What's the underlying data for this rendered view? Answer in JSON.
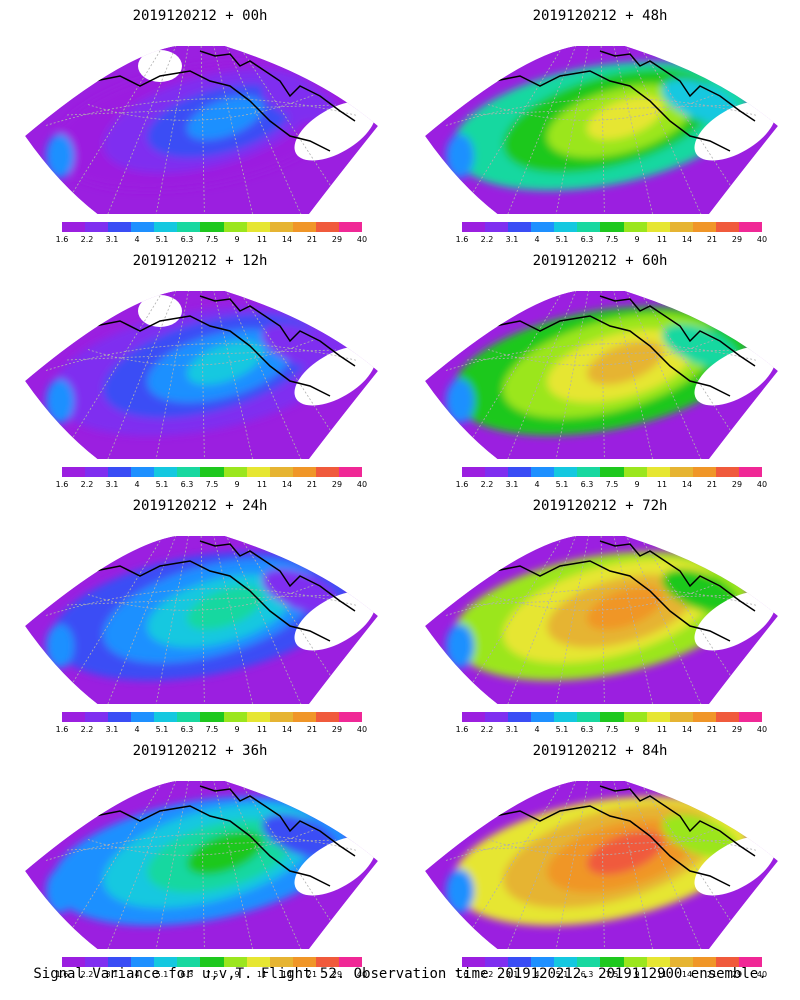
{
  "panels": [
    {
      "title": "2019120212 + 00h",
      "lead_hours": 0
    },
    {
      "title": "2019120212 + 48h",
      "lead_hours": 48
    },
    {
      "title": "2019120212 + 12h",
      "lead_hours": 12
    },
    {
      "title": "2019120212 + 60h",
      "lead_hours": 60
    },
    {
      "title": "2019120212 + 24h",
      "lead_hours": 24
    },
    {
      "title": "2019120212 + 72h",
      "lead_hours": 72
    },
    {
      "title": "2019120212 + 36h",
      "lead_hours": 36
    },
    {
      "title": "2019120212 + 84h",
      "lead_hours": 84
    }
  ],
  "colorbar": {
    "labels": [
      "1.6",
      "2.2",
      "3.1",
      "4",
      "5.1",
      "6.3",
      "7.5",
      "9",
      "11",
      "14",
      "21",
      "29",
      "40"
    ],
    "colors": [
      "#9b1fe0",
      "#7f2ff0",
      "#3a4df5",
      "#1e90ff",
      "#14c8e0",
      "#18d8a0",
      "#1ec81e",
      "#9be61e",
      "#e6e632",
      "#e6b432",
      "#f09628",
      "#f05a3c",
      "#f02896"
    ]
  },
  "footer": "Signal Variance for u,v,T. Flight 52. Observation time 2019120212. 2019112900 ensemble."
}
